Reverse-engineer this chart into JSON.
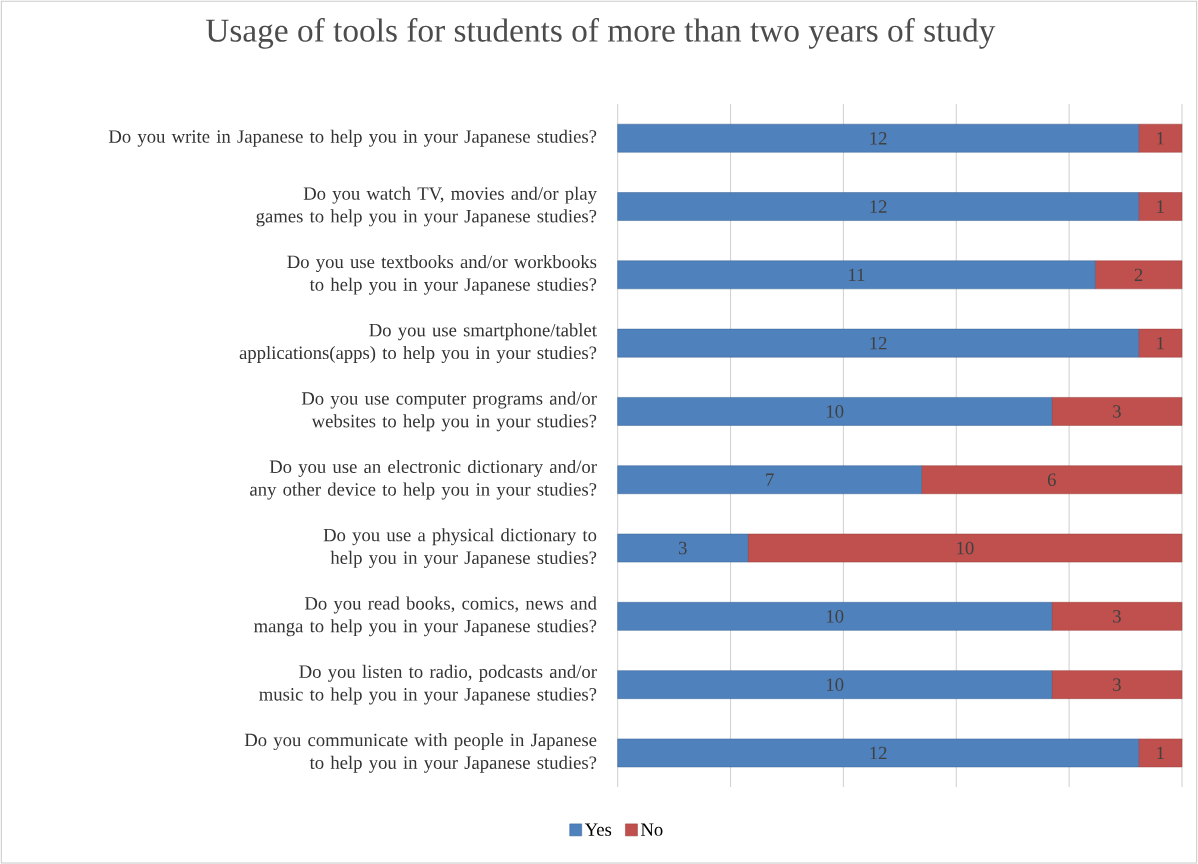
{
  "chart_data": {
    "type": "bar",
    "orientation": "horizontal",
    "stacked": true,
    "title": "Usage of tools for students of more than two years of study",
    "categories": [
      "Do you write in Japanese to help you in your Japanese studies?",
      "Do you watch TV, movies and/or play games to help you in your Japanese studies?",
      "Do you use textbooks and/or workbooks to help you in your Japanese studies?",
      "Do you use smartphone/tablet applications(apps) to help you in your studies?",
      "Do you use computer programs and/or websites to help you in your studies?",
      "Do you use an electronic dictionary and/or any other device to help you in your studies?",
      "Do you use a physical dictionary to help you in your Japanese studies?",
      "Do you read books, comics, news and manga to help you in your Japanese studies?",
      "Do you listen to radio, podcasts and/or music to help you in your Japanese studies?",
      "Do you communicate with people in Japanese to help you in your Japanese studies?"
    ],
    "series": [
      {
        "name": "Yes",
        "color": "#4f81bd",
        "values": [
          12,
          12,
          11,
          12,
          10,
          7,
          3,
          10,
          10,
          12
        ]
      },
      {
        "name": "No",
        "color": "#c0504d",
        "values": [
          1,
          1,
          2,
          1,
          3,
          6,
          10,
          3,
          3,
          1
        ]
      }
    ],
    "tick_labels": "y",
    "grid": "x",
    "data_labels": true,
    "legend": "bottom"
  }
}
